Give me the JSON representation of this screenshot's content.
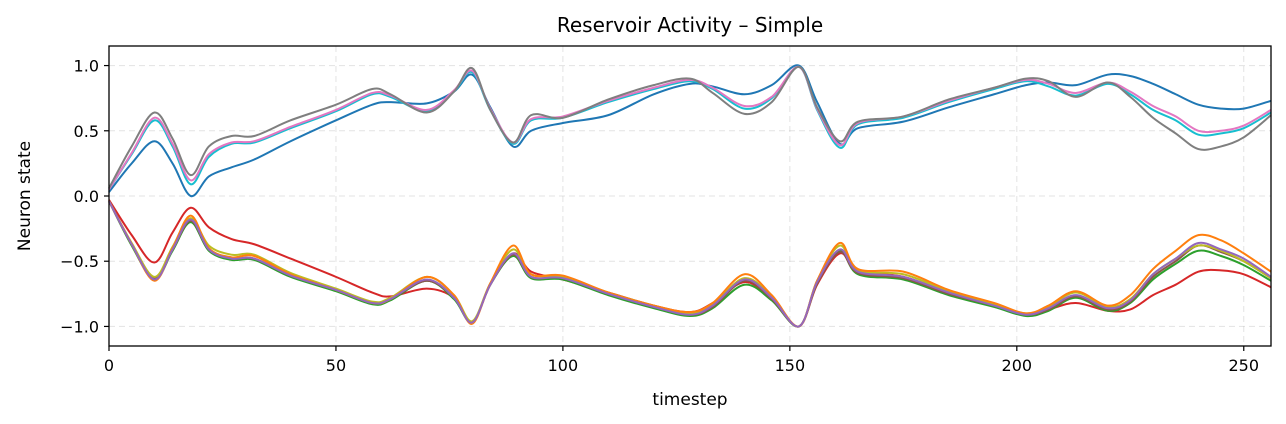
{
  "chart_data": {
    "type": "line",
    "title": "Reservoir Activity – Simple",
    "xlabel": "timestep",
    "ylabel": "Neuron state",
    "xlim": [
      0,
      256
    ],
    "ylim": [
      -1.15,
      1.15
    ],
    "xticks": [
      0,
      50,
      100,
      150,
      200,
      250
    ],
    "xtick_labels": [
      "0",
      "50",
      "100",
      "150",
      "200",
      "250"
    ],
    "yticks": [
      -1.0,
      -0.5,
      0.0,
      0.5,
      1.0
    ],
    "ytick_labels": [
      "−1.0",
      "−0.5",
      "0.0",
      "0.5",
      "1.0"
    ],
    "grid": true,
    "legend": "none",
    "x": [
      0,
      5,
      10,
      14,
      18,
      22,
      27,
      32,
      40,
      50,
      58,
      62,
      70,
      76,
      80,
      84,
      89,
      93,
      100,
      110,
      120,
      128,
      133,
      140,
      146,
      152,
      156,
      161,
      165,
      175,
      185,
      195,
      202,
      207,
      213,
      220,
      225,
      230,
      235,
      240,
      245,
      250,
      256
    ],
    "series": [
      {
        "color": "#1f77b4",
        "values": [
          0.03,
          0.25,
          0.42,
          0.25,
          0.0,
          0.15,
          0.22,
          0.28,
          0.42,
          0.58,
          0.7,
          0.72,
          0.71,
          0.8,
          0.93,
          0.68,
          0.38,
          0.5,
          0.56,
          0.62,
          0.78,
          0.86,
          0.84,
          0.78,
          0.85,
          1.0,
          0.72,
          0.4,
          0.52,
          0.57,
          0.68,
          0.78,
          0.85,
          0.87,
          0.85,
          0.93,
          0.92,
          0.86,
          0.78,
          0.7,
          0.67,
          0.67,
          0.73
        ]
      },
      {
        "color": "#17becf",
        "values": [
          0.05,
          0.32,
          0.58,
          0.38,
          0.09,
          0.3,
          0.4,
          0.41,
          0.52,
          0.65,
          0.78,
          0.76,
          0.65,
          0.8,
          0.95,
          0.66,
          0.4,
          0.58,
          0.6,
          0.72,
          0.82,
          0.88,
          0.82,
          0.67,
          0.75,
          0.99,
          0.66,
          0.37,
          0.55,
          0.6,
          0.72,
          0.82,
          0.88,
          0.84,
          0.77,
          0.86,
          0.78,
          0.66,
          0.58,
          0.47,
          0.48,
          0.52,
          0.64
        ]
      },
      {
        "color": "#e377c2",
        "values": [
          0.05,
          0.33,
          0.6,
          0.4,
          0.12,
          0.32,
          0.41,
          0.42,
          0.53,
          0.66,
          0.79,
          0.77,
          0.66,
          0.81,
          0.96,
          0.67,
          0.41,
          0.59,
          0.61,
          0.73,
          0.83,
          0.89,
          0.83,
          0.69,
          0.76,
          0.99,
          0.67,
          0.39,
          0.56,
          0.61,
          0.73,
          0.83,
          0.89,
          0.86,
          0.79,
          0.87,
          0.8,
          0.69,
          0.61,
          0.5,
          0.5,
          0.54,
          0.66
        ]
      },
      {
        "color": "#7f7f7f",
        "values": [
          0.06,
          0.38,
          0.64,
          0.44,
          0.16,
          0.38,
          0.46,
          0.46,
          0.58,
          0.7,
          0.82,
          0.78,
          0.64,
          0.8,
          0.98,
          0.66,
          0.41,
          0.62,
          0.6,
          0.74,
          0.85,
          0.9,
          0.79,
          0.63,
          0.72,
          0.99,
          0.68,
          0.42,
          0.57,
          0.61,
          0.74,
          0.83,
          0.9,
          0.88,
          0.76,
          0.87,
          0.76,
          0.6,
          0.48,
          0.36,
          0.38,
          0.45,
          0.62
        ]
      },
      {
        "color": "#d62728",
        "values": [
          -0.03,
          -0.3,
          -0.51,
          -0.28,
          -0.09,
          -0.24,
          -0.33,
          -0.37,
          -0.48,
          -0.62,
          -0.74,
          -0.77,
          -0.71,
          -0.78,
          -0.97,
          -0.68,
          -0.44,
          -0.58,
          -0.64,
          -0.74,
          -0.84,
          -0.89,
          -0.82,
          -0.66,
          -0.79,
          -1.0,
          -0.68,
          -0.44,
          -0.57,
          -0.62,
          -0.74,
          -0.84,
          -0.91,
          -0.87,
          -0.82,
          -0.88,
          -0.87,
          -0.76,
          -0.68,
          -0.58,
          -0.57,
          -0.6,
          -0.7
        ]
      },
      {
        "color": "#2ca02c",
        "values": [
          -0.04,
          -0.38,
          -0.64,
          -0.42,
          -0.2,
          -0.42,
          -0.49,
          -0.49,
          -0.62,
          -0.73,
          -0.83,
          -0.8,
          -0.65,
          -0.79,
          -0.97,
          -0.68,
          -0.46,
          -0.63,
          -0.64,
          -0.76,
          -0.86,
          -0.92,
          -0.86,
          -0.68,
          -0.8,
          -1.0,
          -0.67,
          -0.42,
          -0.6,
          -0.64,
          -0.76,
          -0.85,
          -0.92,
          -0.88,
          -0.78,
          -0.88,
          -0.82,
          -0.64,
          -0.52,
          -0.42,
          -0.46,
          -0.53,
          -0.65
        ]
      },
      {
        "color": "#8c564b",
        "values": [
          -0.04,
          -0.37,
          -0.63,
          -0.41,
          -0.19,
          -0.41,
          -0.48,
          -0.48,
          -0.61,
          -0.72,
          -0.82,
          -0.79,
          -0.65,
          -0.78,
          -0.97,
          -0.68,
          -0.45,
          -0.62,
          -0.63,
          -0.75,
          -0.85,
          -0.91,
          -0.85,
          -0.65,
          -0.79,
          -1.0,
          -0.67,
          -0.43,
          -0.59,
          -0.63,
          -0.75,
          -0.84,
          -0.91,
          -0.87,
          -0.77,
          -0.87,
          -0.81,
          -0.62,
          -0.5,
          -0.38,
          -0.43,
          -0.5,
          -0.63
        ]
      },
      {
        "color": "#bcbd22",
        "values": [
          -0.04,
          -0.36,
          -0.62,
          -0.39,
          -0.17,
          -0.38,
          -0.45,
          -0.45,
          -0.59,
          -0.71,
          -0.81,
          -0.78,
          -0.62,
          -0.76,
          -0.96,
          -0.67,
          -0.41,
          -0.6,
          -0.62,
          -0.74,
          -0.84,
          -0.9,
          -0.83,
          -0.63,
          -0.77,
          -1.0,
          -0.65,
          -0.38,
          -0.57,
          -0.6,
          -0.73,
          -0.83,
          -0.9,
          -0.85,
          -0.74,
          -0.85,
          -0.79,
          -0.6,
          -0.48,
          -0.38,
          -0.42,
          -0.5,
          -0.63
        ]
      },
      {
        "color": "#ff7f0e",
        "values": [
          -0.04,
          -0.37,
          -0.65,
          -0.4,
          -0.15,
          -0.4,
          -0.47,
          -0.46,
          -0.6,
          -0.72,
          -0.82,
          -0.79,
          -0.62,
          -0.76,
          -0.98,
          -0.67,
          -0.38,
          -0.6,
          -0.61,
          -0.74,
          -0.84,
          -0.89,
          -0.82,
          -0.6,
          -0.76,
          -1.0,
          -0.65,
          -0.36,
          -0.56,
          -0.58,
          -0.72,
          -0.82,
          -0.9,
          -0.84,
          -0.73,
          -0.84,
          -0.76,
          -0.56,
          -0.42,
          -0.3,
          -0.34,
          -0.44,
          -0.58
        ]
      },
      {
        "color": "#9467bd",
        "values": [
          -0.04,
          -0.37,
          -0.64,
          -0.41,
          -0.18,
          -0.41,
          -0.48,
          -0.48,
          -0.61,
          -0.72,
          -0.82,
          -0.79,
          -0.64,
          -0.78,
          -0.97,
          -0.68,
          -0.44,
          -0.62,
          -0.63,
          -0.75,
          -0.85,
          -0.91,
          -0.84,
          -0.64,
          -0.78,
          -1.0,
          -0.66,
          -0.41,
          -0.58,
          -0.62,
          -0.74,
          -0.84,
          -0.91,
          -0.86,
          -0.76,
          -0.86,
          -0.8,
          -0.6,
          -0.48,
          -0.36,
          -0.41,
          -0.48,
          -0.62
        ]
      }
    ]
  }
}
